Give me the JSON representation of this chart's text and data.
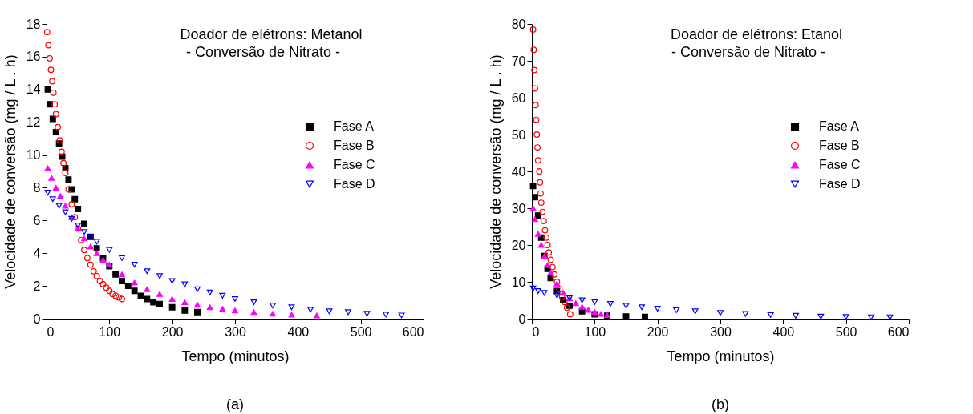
{
  "chart_data": [
    {
      "type": "scatter",
      "title": "Doador de elétrons: Metanol",
      "subtitle": "- Conversão de Nitrato -",
      "xlabel": "Tempo (minutos)",
      "ylabel": "Velocidade de conversão (mg / L . h)",
      "annotations": [
        "(a)"
      ],
      "xlim": [
        0,
        600
      ],
      "xticks": [
        0,
        100,
        200,
        300,
        400,
        500,
        600
      ],
      "ylim": [
        0,
        18
      ],
      "yticks": [
        0,
        2,
        4,
        6,
        8,
        10,
        12,
        14,
        16,
        18
      ],
      "grid": false,
      "legend": "right",
      "series": [
        {
          "name": "Fase A",
          "color": "#000000",
          "marker": "square",
          "x": [
            2,
            5,
            10,
            15,
            20,
            25,
            30,
            35,
            40,
            45,
            50,
            60,
            70,
            80,
            90,
            100,
            110,
            120,
            130,
            140,
            150,
            160,
            170,
            180,
            200,
            220,
            240
          ],
          "values": [
            14,
            13.1,
            12.2,
            11.4,
            10.7,
            9.9,
            9.2,
            8.5,
            7.9,
            7.3,
            6.7,
            5.8,
            5.0,
            4.3,
            3.7,
            3.2,
            2.7,
            2.3,
            2.0,
            1.7,
            1.4,
            1.2,
            1.0,
            0.9,
            0.7,
            0.5,
            0.4
          ]
        },
        {
          "name": "Fase B",
          "color": "#ff0000",
          "marker": "circle",
          "x": [
            1,
            3,
            5,
            7,
            9,
            11,
            13,
            15,
            18,
            21,
            24,
            27,
            30,
            35,
            40,
            45,
            50,
            55,
            60,
            65,
            70,
            75,
            80,
            85,
            90,
            95,
            100,
            105,
            110,
            115,
            120
          ],
          "values": [
            17.5,
            16.7,
            15.9,
            15.2,
            14.5,
            13.8,
            13.1,
            12.5,
            11.7,
            10.9,
            10.2,
            9.5,
            8.9,
            7.9,
            7.0,
            6.2,
            5.5,
            4.8,
            4.2,
            3.7,
            3.3,
            2.9,
            2.6,
            2.3,
            2.1,
            1.9,
            1.7,
            1.5,
            1.4,
            1.3,
            1.2
          ]
        },
        {
          "name": "Fase C",
          "color": "#ff00ff",
          "marker": "triangle",
          "x": [
            2,
            8,
            15,
            22,
            30,
            40,
            50,
            60,
            70,
            80,
            90,
            100,
            120,
            140,
            160,
            180,
            200,
            220,
            240,
            260,
            280,
            300,
            330,
            360,
            390,
            430
          ],
          "values": [
            9.2,
            8.6,
            8.0,
            7.5,
            6.9,
            6.2,
            5.5,
            4.9,
            4.4,
            4.0,
            3.6,
            3.3,
            2.7,
            2.2,
            1.8,
            1.5,
            1.2,
            1.0,
            0.85,
            0.7,
            0.6,
            0.5,
            0.4,
            0.3,
            0.25,
            0.2
          ]
        },
        {
          "name": "Fase D",
          "color": "#0000ff",
          "marker": "triangle-down",
          "x": [
            2,
            10,
            20,
            30,
            40,
            50,
            60,
            70,
            80,
            100,
            120,
            140,
            160,
            180,
            200,
            220,
            240,
            260,
            280,
            300,
            330,
            360,
            390,
            420,
            450,
            480,
            510,
            540,
            565
          ],
          "values": [
            7.7,
            7.3,
            6.9,
            6.5,
            6.1,
            5.7,
            5.3,
            5.0,
            4.7,
            4.2,
            3.7,
            3.3,
            2.9,
            2.6,
            2.3,
            2.1,
            1.8,
            1.6,
            1.4,
            1.2,
            1.0,
            0.8,
            0.7,
            0.55,
            0.45,
            0.4,
            0.3,
            0.25,
            0.2
          ]
        }
      ]
    },
    {
      "type": "scatter",
      "title": "Doador de elétrons: Etanol",
      "subtitle": "- Conversão de Nitrato -",
      "xlabel": "Tempo (minutos)",
      "ylabel": "Velocidade de conversão (mg / L . h)",
      "annotations": [
        "(b)"
      ],
      "xlim": [
        0,
        600
      ],
      "xticks": [
        0,
        100,
        200,
        300,
        400,
        500,
        600
      ],
      "ylim": [
        0,
        80
      ],
      "yticks": [
        0,
        10,
        20,
        30,
        40,
        50,
        60,
        70,
        80
      ],
      "grid": false,
      "legend": "right",
      "series": [
        {
          "name": "Fase A",
          "color": "#000000",
          "marker": "square",
          "x": [
            2,
            5,
            10,
            15,
            20,
            25,
            30,
            40,
            50,
            60,
            80,
            100,
            120,
            150,
            180
          ],
          "values": [
            36,
            33,
            28,
            22,
            17,
            13.5,
            11,
            7.5,
            5,
            3.5,
            2,
            1.2,
            0.8,
            0.6,
            0.5
          ]
        },
        {
          "name": "Fase B",
          "color": "#ff0000",
          "marker": "circle",
          "x": [
            2,
            3,
            4,
            5,
            6,
            7,
            8,
            9,
            10,
            12,
            13,
            14,
            15,
            17,
            19,
            21,
            23,
            25,
            27,
            30,
            33,
            36,
            40,
            44,
            48,
            52,
            56,
            61
          ],
          "values": [
            78.5,
            73,
            67.5,
            62.5,
            58,
            54,
            50,
            46.5,
            43,
            40,
            37,
            34,
            31.5,
            29,
            26.5,
            24,
            22,
            20,
            18,
            16,
            14,
            12,
            10,
            8,
            6,
            4.5,
            3,
            1.2
          ]
        },
        {
          "name": "Fase C",
          "color": "#ff00ff",
          "marker": "triangle",
          "x": [
            2,
            5,
            10,
            15,
            20,
            25,
            30,
            40,
            50,
            60,
            70,
            80,
            90,
            100,
            110,
            120
          ],
          "values": [
            30,
            27,
            23,
            20,
            17,
            14.5,
            12.5,
            9.5,
            7,
            5.5,
            4.2,
            3.2,
            2.4,
            1.8,
            1.3,
            1
          ]
        },
        {
          "name": "Fase D",
          "color": "#0000ff",
          "marker": "triangle-down",
          "x": [
            2,
            10,
            20,
            40,
            60,
            80,
            100,
            125,
            150,
            175,
            200,
            230,
            260,
            300,
            340,
            380,
            420,
            460,
            500,
            540,
            570
          ],
          "values": [
            8.2,
            7.5,
            7,
            6.3,
            5.6,
            5,
            4.5,
            4,
            3.5,
            3.1,
            2.7,
            2.3,
            2,
            1.6,
            1.3,
            1,
            0.8,
            0.6,
            0.5,
            0.4,
            0.4
          ]
        }
      ]
    }
  ]
}
